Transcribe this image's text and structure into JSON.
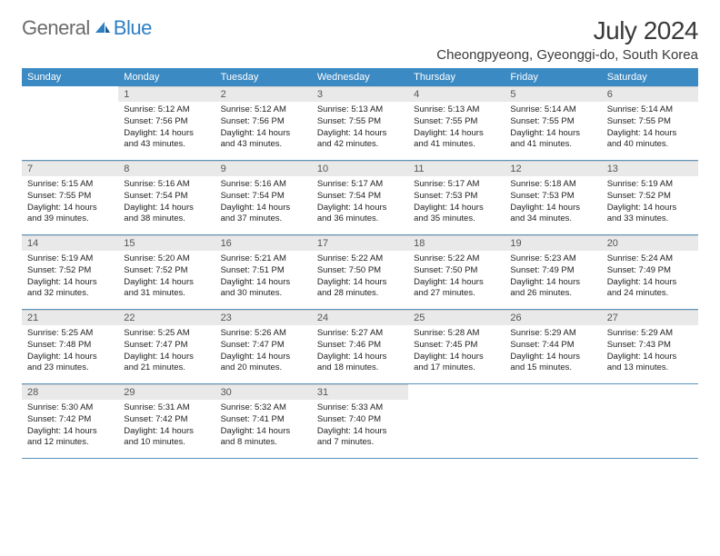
{
  "brand": {
    "part1": "General",
    "part2": "Blue"
  },
  "title": "July 2024",
  "location": "Cheongpyeong, Gyeonggi-do, South Korea",
  "colors": {
    "header_bg": "#3b8ac4",
    "header_text": "#ffffff",
    "daynum_bg": "#e9e9e9",
    "rule": "#5a93bd",
    "body_text": "#222222",
    "title_text": "#3a3a3a",
    "logo_gray": "#6b6b6b",
    "logo_blue": "#2d7fc4",
    "page_bg": "#ffffff"
  },
  "fonts": {
    "title_size_pt": 21,
    "location_size_pt": 11,
    "dayhead_size_pt": 8,
    "daynum_size_pt": 8,
    "body_size_pt": 7
  },
  "dayNames": [
    "Sunday",
    "Monday",
    "Tuesday",
    "Wednesday",
    "Thursday",
    "Friday",
    "Saturday"
  ],
  "weeks": [
    [
      {
        "n": "",
        "lines": [
          "",
          "",
          "",
          ""
        ]
      },
      {
        "n": "1",
        "lines": [
          "Sunrise: 5:12 AM",
          "Sunset: 7:56 PM",
          "Daylight: 14 hours",
          "and 43 minutes."
        ]
      },
      {
        "n": "2",
        "lines": [
          "Sunrise: 5:12 AM",
          "Sunset: 7:56 PM",
          "Daylight: 14 hours",
          "and 43 minutes."
        ]
      },
      {
        "n": "3",
        "lines": [
          "Sunrise: 5:13 AM",
          "Sunset: 7:55 PM",
          "Daylight: 14 hours",
          "and 42 minutes."
        ]
      },
      {
        "n": "4",
        "lines": [
          "Sunrise: 5:13 AM",
          "Sunset: 7:55 PM",
          "Daylight: 14 hours",
          "and 41 minutes."
        ]
      },
      {
        "n": "5",
        "lines": [
          "Sunrise: 5:14 AM",
          "Sunset: 7:55 PM",
          "Daylight: 14 hours",
          "and 41 minutes."
        ]
      },
      {
        "n": "6",
        "lines": [
          "Sunrise: 5:14 AM",
          "Sunset: 7:55 PM",
          "Daylight: 14 hours",
          "and 40 minutes."
        ]
      }
    ],
    [
      {
        "n": "7",
        "lines": [
          "Sunrise: 5:15 AM",
          "Sunset: 7:55 PM",
          "Daylight: 14 hours",
          "and 39 minutes."
        ]
      },
      {
        "n": "8",
        "lines": [
          "Sunrise: 5:16 AM",
          "Sunset: 7:54 PM",
          "Daylight: 14 hours",
          "and 38 minutes."
        ]
      },
      {
        "n": "9",
        "lines": [
          "Sunrise: 5:16 AM",
          "Sunset: 7:54 PM",
          "Daylight: 14 hours",
          "and 37 minutes."
        ]
      },
      {
        "n": "10",
        "lines": [
          "Sunrise: 5:17 AM",
          "Sunset: 7:54 PM",
          "Daylight: 14 hours",
          "and 36 minutes."
        ]
      },
      {
        "n": "11",
        "lines": [
          "Sunrise: 5:17 AM",
          "Sunset: 7:53 PM",
          "Daylight: 14 hours",
          "and 35 minutes."
        ]
      },
      {
        "n": "12",
        "lines": [
          "Sunrise: 5:18 AM",
          "Sunset: 7:53 PM",
          "Daylight: 14 hours",
          "and 34 minutes."
        ]
      },
      {
        "n": "13",
        "lines": [
          "Sunrise: 5:19 AM",
          "Sunset: 7:52 PM",
          "Daylight: 14 hours",
          "and 33 minutes."
        ]
      }
    ],
    [
      {
        "n": "14",
        "lines": [
          "Sunrise: 5:19 AM",
          "Sunset: 7:52 PM",
          "Daylight: 14 hours",
          "and 32 minutes."
        ]
      },
      {
        "n": "15",
        "lines": [
          "Sunrise: 5:20 AM",
          "Sunset: 7:52 PM",
          "Daylight: 14 hours",
          "and 31 minutes."
        ]
      },
      {
        "n": "16",
        "lines": [
          "Sunrise: 5:21 AM",
          "Sunset: 7:51 PM",
          "Daylight: 14 hours",
          "and 30 minutes."
        ]
      },
      {
        "n": "17",
        "lines": [
          "Sunrise: 5:22 AM",
          "Sunset: 7:50 PM",
          "Daylight: 14 hours",
          "and 28 minutes."
        ]
      },
      {
        "n": "18",
        "lines": [
          "Sunrise: 5:22 AM",
          "Sunset: 7:50 PM",
          "Daylight: 14 hours",
          "and 27 minutes."
        ]
      },
      {
        "n": "19",
        "lines": [
          "Sunrise: 5:23 AM",
          "Sunset: 7:49 PM",
          "Daylight: 14 hours",
          "and 26 minutes."
        ]
      },
      {
        "n": "20",
        "lines": [
          "Sunrise: 5:24 AM",
          "Sunset: 7:49 PM",
          "Daylight: 14 hours",
          "and 24 minutes."
        ]
      }
    ],
    [
      {
        "n": "21",
        "lines": [
          "Sunrise: 5:25 AM",
          "Sunset: 7:48 PM",
          "Daylight: 14 hours",
          "and 23 minutes."
        ]
      },
      {
        "n": "22",
        "lines": [
          "Sunrise: 5:25 AM",
          "Sunset: 7:47 PM",
          "Daylight: 14 hours",
          "and 21 minutes."
        ]
      },
      {
        "n": "23",
        "lines": [
          "Sunrise: 5:26 AM",
          "Sunset: 7:47 PM",
          "Daylight: 14 hours",
          "and 20 minutes."
        ]
      },
      {
        "n": "24",
        "lines": [
          "Sunrise: 5:27 AM",
          "Sunset: 7:46 PM",
          "Daylight: 14 hours",
          "and 18 minutes."
        ]
      },
      {
        "n": "25",
        "lines": [
          "Sunrise: 5:28 AM",
          "Sunset: 7:45 PM",
          "Daylight: 14 hours",
          "and 17 minutes."
        ]
      },
      {
        "n": "26",
        "lines": [
          "Sunrise: 5:29 AM",
          "Sunset: 7:44 PM",
          "Daylight: 14 hours",
          "and 15 minutes."
        ]
      },
      {
        "n": "27",
        "lines": [
          "Sunrise: 5:29 AM",
          "Sunset: 7:43 PM",
          "Daylight: 14 hours",
          "and 13 minutes."
        ]
      }
    ],
    [
      {
        "n": "28",
        "lines": [
          "Sunrise: 5:30 AM",
          "Sunset: 7:42 PM",
          "Daylight: 14 hours",
          "and 12 minutes."
        ]
      },
      {
        "n": "29",
        "lines": [
          "Sunrise: 5:31 AM",
          "Sunset: 7:42 PM",
          "Daylight: 14 hours",
          "and 10 minutes."
        ]
      },
      {
        "n": "30",
        "lines": [
          "Sunrise: 5:32 AM",
          "Sunset: 7:41 PM",
          "Daylight: 14 hours",
          "and 8 minutes."
        ]
      },
      {
        "n": "31",
        "lines": [
          "Sunrise: 5:33 AM",
          "Sunset: 7:40 PM",
          "Daylight: 14 hours",
          "and 7 minutes."
        ]
      },
      {
        "n": "",
        "lines": [
          "",
          "",
          "",
          ""
        ]
      },
      {
        "n": "",
        "lines": [
          "",
          "",
          "",
          ""
        ]
      },
      {
        "n": "",
        "lines": [
          "",
          "",
          "",
          ""
        ]
      }
    ]
  ]
}
